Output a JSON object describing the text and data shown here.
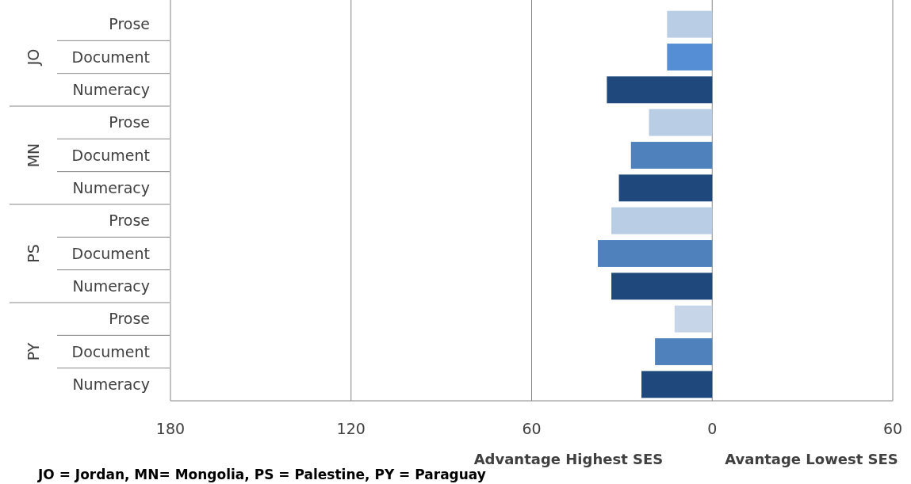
{
  "chart_data": {
    "type": "bar",
    "orientation": "horizontal",
    "categories": [
      "Prose",
      "Document",
      "Numeracy",
      "Prose",
      "Document",
      "Numeracy",
      "Prose",
      "Document",
      "Numeracy",
      "Prose",
      "Document",
      "Numeracy"
    ],
    "values": [
      15,
      15,
      35,
      21,
      27,
      31,
      33.5,
      38,
      33.5,
      12.5,
      19,
      23.5
    ],
    "colors": [
      "#b9cde5",
      "#558ed5",
      "#1f497d",
      "#b9cde5",
      "#4f81bd",
      "#1f497d",
      "#b9cde5",
      "#4f81bd",
      "#1f497d",
      "#c6d5e8",
      "#4f81bd",
      "#1f497d"
    ],
    "xlim": [
      180,
      -60
    ],
    "xticks": [
      180,
      120,
      60,
      0,
      {
        "value": -60,
        "label": "60"
      }
    ],
    "grid": "x",
    "xlabel": "Advantage Highest SES",
    "annotations": [
      "JO",
      "MN",
      "PS",
      "PY",
      "Avantage Lowest SES",
      "JO = Jordan, MN= Mongolia, PS = Palestine, PY = Paraguay"
    ]
  }
}
